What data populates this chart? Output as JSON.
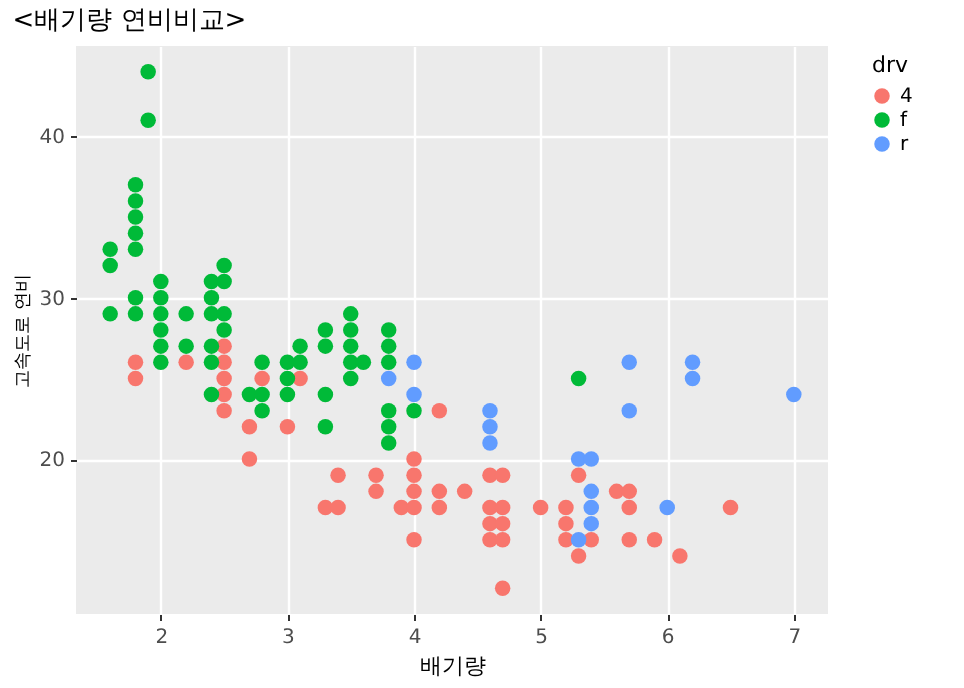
{
  "chart_data": {
    "type": "scatter",
    "title": "<배기량 연비비교>",
    "xlabel": "배기량",
    "ylabel": "고속도로 연비",
    "legend_title": "drv",
    "legend": "right",
    "grid": true,
    "marker": "circle",
    "xlim": [
      1.33,
      7.27
    ],
    "ylim": [
      10.4,
      45.6
    ],
    "xticks": [
      2,
      3,
      4,
      5,
      6,
      7
    ],
    "yticks": [
      20,
      30,
      40
    ],
    "series": [
      {
        "name": "4",
        "color": "#f8766d",
        "x": [
          1.8,
          1.8,
          2.2,
          2.5,
          2.5,
          2.5,
          2.5,
          2.5,
          2.7,
          2.7,
          2.8,
          3.0,
          3.1,
          3.3,
          3.4,
          3.4,
          3.7,
          3.7,
          3.9,
          4.0,
          4.0,
          4.0,
          4.0,
          4.0,
          4.2,
          4.2,
          4.2,
          4.4,
          4.6,
          4.6,
          4.6,
          4.6,
          4.7,
          4.7,
          4.7,
          4.7,
          4.7,
          5.0,
          5.2,
          5.2,
          5.2,
          5.3,
          5.3,
          5.4,
          5.6,
          5.7,
          5.7,
          5.7,
          5.9,
          6.1,
          6.5
        ],
        "values": [
          26,
          25,
          26,
          27,
          26,
          25,
          24,
          23,
          22,
          20,
          25,
          22,
          25,
          17,
          19,
          17,
          19,
          18,
          17,
          20,
          19,
          18,
          17,
          15,
          23,
          18,
          17,
          18,
          19,
          17,
          16,
          15,
          19,
          17,
          16,
          15,
          12,
          17,
          17,
          16,
          15,
          19,
          14,
          15,
          18,
          18,
          17,
          15,
          15,
          14,
          17
        ]
      },
      {
        "name": "f",
        "color": "#00ba38",
        "x": [
          1.6,
          1.6,
          1.6,
          1.8,
          1.8,
          1.8,
          1.8,
          1.8,
          1.8,
          1.8,
          1.9,
          1.9,
          2.0,
          2.0,
          2.0,
          2.0,
          2.0,
          2.0,
          2.2,
          2.2,
          2.4,
          2.4,
          2.4,
          2.4,
          2.4,
          2.4,
          2.5,
          2.5,
          2.5,
          2.5,
          2.7,
          2.8,
          2.8,
          2.8,
          3.0,
          3.0,
          3.0,
          3.1,
          3.1,
          3.3,
          3.3,
          3.3,
          3.3,
          3.5,
          3.5,
          3.5,
          3.5,
          3.5,
          3.6,
          3.8,
          3.8,
          3.8,
          3.8,
          3.8,
          3.8,
          4.0,
          5.3
        ],
        "values": [
          33,
          32,
          29,
          37,
          36,
          35,
          34,
          33,
          30,
          29,
          44,
          41,
          31,
          30,
          29,
          28,
          27,
          26,
          29,
          27,
          31,
          30,
          29,
          27,
          26,
          24,
          32,
          31,
          29,
          28,
          24,
          26,
          24,
          23,
          26,
          25,
          24,
          27,
          26,
          28,
          27,
          24,
          22,
          29,
          28,
          27,
          26,
          25,
          26,
          28,
          27,
          26,
          23,
          22,
          21,
          23,
          25
        ]
      },
      {
        "name": "r",
        "color": "#619cff",
        "x": [
          3.8,
          4.0,
          4.0,
          4.6,
          4.6,
          4.6,
          5.3,
          5.3,
          5.4,
          5.4,
          5.4,
          5.4,
          5.7,
          5.7,
          6.0,
          6.2,
          6.2,
          7.0
        ],
        "values": [
          25,
          26,
          24,
          23,
          22,
          21,
          20,
          15,
          20,
          18,
          17,
          16,
          26,
          23,
          17,
          26,
          25,
          24
        ]
      }
    ]
  }
}
